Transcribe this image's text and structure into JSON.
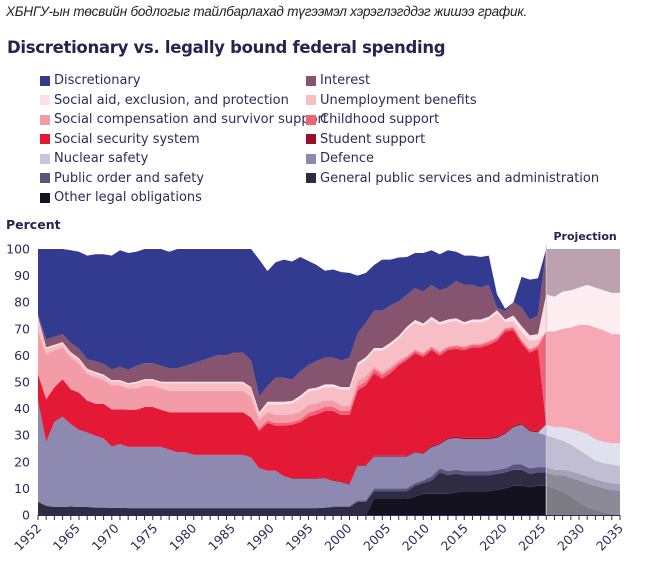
{
  "caption": "ХБНГУ-ын төсвийн бодлогыг тайлбарлахад түгээмэл хэрэглэгддэг жишээ график.",
  "chart_data": {
    "type": "area",
    "stacked": true,
    "title": "Discretionary vs. legally bound federal spending",
    "ylabel": "Percent",
    "xlabel": "",
    "ylim": [
      0,
      100
    ],
    "yticks": [
      0,
      10,
      20,
      30,
      40,
      50,
      60,
      70,
      80,
      90,
      100
    ],
    "xtick_labels": [
      "1952",
      "1965",
      "1970",
      "1975",
      "1980",
      "1985",
      "1990",
      "1995",
      "2000",
      "2005",
      "2010",
      "2015",
      "2020",
      "2025",
      "2030",
      "2035"
    ],
    "projection_label": "Projection",
    "projection_start": 2026,
    "legend_position": "top",
    "x": [
      1952,
      1965,
      1966,
      1967,
      1968,
      1969,
      1970,
      1971,
      1972,
      1973,
      1974,
      1975,
      1976,
      1977,
      1978,
      1979,
      1980,
      1981,
      1982,
      1983,
      1984,
      1985,
      1986,
      1987,
      1988,
      1989,
      1990,
      1991,
      1992,
      1993,
      1994,
      1995,
      1996,
      1997,
      1998,
      1999,
      2000,
      2001,
      2002,
      2003,
      2004,
      2005,
      2006,
      2007,
      2008,
      2009,
      2010,
      2011,
      2012,
      2013,
      2014,
      2015,
      2016,
      2017,
      2018,
      2019,
      2020,
      2021,
      2022,
      2023,
      2024,
      2025,
      2026,
      2027,
      2028,
      2029,
      2030,
      2031,
      2032,
      2033,
      2034,
      2035
    ],
    "series": [
      {
        "name": "Other legal obligations",
        "color": "#13121e",
        "values": [
          0,
          0,
          0,
          0,
          0,
          0,
          0,
          0,
          0,
          0,
          0,
          0,
          0,
          0,
          0,
          0,
          0,
          0,
          0,
          0,
          0,
          0,
          0,
          0,
          0,
          0,
          0,
          0,
          0,
          0,
          0,
          0,
          0,
          0,
          0,
          0,
          0,
          0,
          0,
          0,
          0,
          6,
          6,
          6,
          6,
          6,
          7,
          8,
          8,
          8,
          8,
          8.5,
          9,
          9,
          9,
          9,
          9.5,
          10,
          11,
          11,
          10.5,
          11,
          11,
          10,
          9,
          7,
          5,
          3,
          2,
          1,
          0.5,
          0
        ]
      },
      {
        "name": "General public services and administration",
        "color": "#2e2b42",
        "values": [
          5,
          3.5,
          3,
          3,
          3.2,
          3,
          3,
          2.8,
          2.8,
          2.7,
          2.7,
          2.6,
          2.6,
          2.6,
          2.6,
          2.6,
          2.6,
          2.6,
          2.6,
          2.6,
          2.6,
          2.6,
          2.6,
          2.6,
          2.6,
          2.6,
          2.6,
          2.6,
          2.6,
          2.6,
          2.6,
          2.6,
          2.6,
          2.6,
          2.6,
          2.8,
          3,
          3,
          3,
          5,
          5,
          3,
          3,
          3,
          3,
          3,
          4,
          4,
          5,
          8,
          7,
          7,
          6,
          6,
          6,
          6,
          6,
          6,
          6,
          6,
          5,
          5,
          5,
          5,
          6,
          7,
          8,
          9,
          9,
          9,
          9,
          9
        ]
      },
      {
        "name": "Public order and safety",
        "color": "#5a547e",
        "values": [
          0,
          0,
          0,
          0,
          0,
          0,
          0,
          0,
          0,
          0,
          0,
          0,
          0,
          0,
          0,
          0,
          0,
          0,
          0,
          0,
          0,
          0,
          0,
          0,
          0,
          0,
          0,
          0,
          0,
          0,
          0,
          0,
          0,
          0,
          0,
          0,
          0.3,
          0.3,
          0.3,
          0.5,
          0.5,
          1,
          1,
          1,
          1,
          1,
          1,
          1,
          1.5,
          1.5,
          1.5,
          1.5,
          1.5,
          1.5,
          1.5,
          1.5,
          1.5,
          1.5,
          2,
          2,
          2,
          2,
          2,
          2,
          2,
          2.5,
          2.5,
          2.5,
          2.5,
          2.5,
          2.5,
          2.5
        ]
      },
      {
        "name": "Defence",
        "color": "#8e89b0",
        "values": [
          38,
          24,
          32,
          34,
          31,
          29,
          28,
          27,
          26,
          23,
          24,
          23,
          23,
          23,
          23,
          23,
          22,
          21,
          21,
          20,
          20,
          20,
          20,
          20,
          20,
          20,
          19,
          15,
          14,
          14,
          12,
          11,
          11,
          11,
          11,
          11,
          9.5,
          9,
          8,
          13,
          13,
          12,
          12,
          12,
          12,
          12,
          11.5,
          10,
          11,
          9,
          12,
          12,
          12,
          12,
          12,
          12,
          12,
          13,
          14,
          15,
          14,
          13,
          12,
          12,
          11,
          10,
          9,
          8,
          7,
          7,
          7,
          7
        ]
      },
      {
        "name": "Nuclear safety",
        "color": "#c8c6de",
        "values": [
          0,
          0,
          0,
          0,
          0,
          0,
          0,
          0,
          0,
          0,
          0,
          0,
          0,
          0,
          0,
          0,
          0,
          0,
          0,
          0,
          0,
          0,
          0,
          0,
          0,
          0,
          0,
          0,
          0,
          0,
          0,
          0,
          0,
          0,
          0,
          0,
          0,
          0,
          0,
          0,
          0,
          0,
          0,
          0,
          0,
          0,
          0,
          0,
          0,
          0,
          0,
          0,
          0,
          0,
          0,
          0,
          0,
          0,
          0,
          0,
          0,
          0,
          4,
          4,
          5,
          6,
          7,
          8,
          8,
          8,
          8,
          8.5
        ]
      },
      {
        "name": "Student support",
        "color": "#9b0e2a",
        "values": [
          0,
          0,
          0,
          0,
          0,
          0,
          0,
          0,
          0,
          0,
          0,
          0,
          0,
          0,
          0,
          0,
          0,
          0,
          0,
          0,
          0,
          0,
          0,
          0,
          0,
          0,
          0,
          0,
          0,
          0,
          0,
          0.3,
          0.3,
          0.3,
          0.3,
          0.3,
          0.3,
          0.3,
          0.3,
          0.3,
          0.3,
          0.3,
          0.3,
          0.3,
          0.3,
          0.3,
          0.3,
          0.5,
          0.5,
          0.5,
          0.5,
          0.5,
          0.5,
          0.5,
          0.5,
          0.5,
          0.5,
          0.5,
          0.5,
          0.5,
          0.5,
          0.5,
          0,
          0,
          0,
          0,
          0,
          0,
          0,
          0,
          0,
          0
        ]
      },
      {
        "name": "Social security system",
        "color": "#e31935",
        "values": [
          10,
          16,
          13,
          14,
          13,
          14,
          12,
          12,
          13,
          14,
          13,
          14,
          14,
          15,
          15,
          14,
          14,
          15,
          15,
          16,
          16,
          16,
          16,
          16,
          16,
          16,
          15,
          14,
          18,
          17,
          19,
          20,
          21,
          23,
          24,
          25,
          26,
          25,
          26,
          28,
          30,
          31,
          29,
          31,
          34,
          36,
          37,
          36,
          36,
          33,
          33,
          33,
          33,
          34,
          34,
          35,
          36,
          38,
          36,
          30,
          29,
          31,
          0,
          0,
          0,
          0,
          0,
          0,
          0,
          0,
          0,
          0
        ]
      },
      {
        "name": "Childhood support",
        "color": "#ef6277",
        "values": [
          0,
          0,
          0,
          0,
          0,
          0,
          0,
          0,
          0,
          0,
          0,
          0,
          0,
          0,
          0,
          0,
          0,
          0,
          0,
          0,
          0,
          0,
          0,
          0,
          0,
          0,
          0,
          1,
          1,
          1,
          1,
          1,
          1,
          1.5,
          1.5,
          1.5,
          1.5,
          1.5,
          1.5,
          1.5,
          1.5,
          1.5,
          1.5,
          1.5,
          1,
          1,
          1,
          1,
          1,
          1,
          1,
          1,
          1,
          1,
          1,
          1,
          1,
          1,
          1,
          1,
          1,
          1,
          35,
          36,
          37,
          38,
          40,
          41,
          42,
          42,
          41,
          41
        ]
      },
      {
        "name": "Social compensation and survivor support",
        "color": "#f39ca7",
        "values": [
          16,
          17,
          14,
          12,
          12,
          11,
          10,
          10,
          9,
          9,
          9,
          8,
          8,
          8,
          8,
          8,
          8,
          8,
          8,
          8,
          8,
          8,
          8,
          8,
          8,
          8,
          8,
          3,
          3,
          3,
          3,
          3,
          3,
          3,
          2.5,
          2.5,
          2.5,
          2,
          2,
          2,
          2,
          1,
          1,
          1,
          1,
          0.5,
          0.5,
          0.5,
          0.5,
          0.5,
          0.5,
          0.5,
          0.5,
          0.5,
          0.5,
          0.5,
          0.5,
          0.5,
          0.5,
          0.5,
          0.5,
          0.5,
          0,
          0,
          0,
          0,
          0,
          0,
          0,
          0,
          0,
          0
        ]
      },
      {
        "name": "Unemployment benefits",
        "color": "#f7bec5",
        "values": [
          5,
          2,
          1.5,
          1.5,
          1.5,
          1.5,
          1.5,
          1.5,
          1.5,
          1.5,
          1.5,
          1.5,
          2,
          2,
          2,
          2,
          3,
          3,
          3,
          3,
          3,
          3,
          3,
          3,
          3,
          3,
          3,
          2,
          3,
          4,
          4,
          4,
          5,
          5,
          5,
          5,
          5,
          6,
          6,
          6,
          6,
          6,
          8,
          8,
          8,
          10,
          10,
          10,
          10,
          10,
          9,
          9,
          8,
          8,
          8,
          8,
          9,
          2,
          2,
          3,
          3,
          2,
          0,
          0,
          0,
          0,
          0,
          0,
          0,
          0,
          0,
          0
        ]
      },
      {
        "name": "Social aid, exclusion, and protection",
        "color": "#fde1e5",
        "values": [
          0.5,
          0.5,
          0.5,
          0.5,
          0.5,
          0.5,
          0.5,
          0.5,
          0.5,
          0.5,
          0.5,
          0.5,
          0.5,
          0.5,
          0.5,
          0.5,
          0.5,
          0.5,
          0.5,
          0.5,
          0.5,
          0.5,
          0.5,
          0.5,
          0.5,
          0.5,
          0.5,
          1,
          1,
          1,
          1,
          1,
          1,
          1,
          1,
          1,
          1,
          1,
          1,
          1,
          1,
          1,
          1,
          1,
          1,
          1,
          1,
          1,
          1,
          1,
          1,
          1,
          1,
          1,
          1,
          1,
          1,
          1,
          2,
          2,
          2,
          2,
          14,
          13,
          14,
          14,
          14,
          15,
          15,
          15,
          15.5,
          15.5
        ]
      },
      {
        "name": "Interest",
        "color": "#86546e",
        "values": [
          1,
          3,
          3,
          3,
          3.5,
          3.5,
          3.5,
          4,
          4,
          4,
          5,
          5,
          6,
          6,
          6,
          6,
          5,
          5,
          6,
          7,
          8,
          9,
          10,
          10,
          11,
          11,
          10,
          6,
          6,
          9,
          9,
          8,
          9,
          9,
          10,
          10,
          10,
          10,
          11,
          11,
          13,
          14,
          14,
          14,
          13,
          12,
          12,
          12,
          12,
          12,
          12,
          14,
          14,
          13,
          12,
          12,
          1,
          3,
          5,
          7,
          6,
          7,
          18,
          20,
          20,
          20,
          20,
          20,
          20,
          20,
          20.5,
          21
        ]
      },
      {
        "name": "Discretionary",
        "color": "#323b8f",
        "values": [
          24.5,
          34,
          34,
          32.5,
          34.8,
          36.5,
          39,
          40.2,
          41.2,
          42.8,
          43.8,
          43.9,
          42.9,
          42.9,
          42.9,
          43.9,
          43.9,
          44.9,
          43.9,
          43.9,
          42.9,
          41.9,
          40.9,
          40.9,
          39.9,
          39.9,
          42.9,
          51.4,
          43.1,
          43.4,
          44.4,
          44.4,
          43.1,
          39.1,
          36.1,
          32.7,
          33.2,
          33.2,
          31.9,
          21.7,
          18.7,
          17.2,
          19.2,
          17.2,
          16.5,
          14.2,
          13.2,
          14.5,
          13,
          13.5,
          14,
          11,
          11,
          11,
          11.5,
          11,
          5,
          1,
          0,
          11.5,
          15,
          14,
          4,
          6,
          4,
          3,
          2,
          0,
          0,
          0,
          0,
          0
        ]
      }
    ]
  }
}
